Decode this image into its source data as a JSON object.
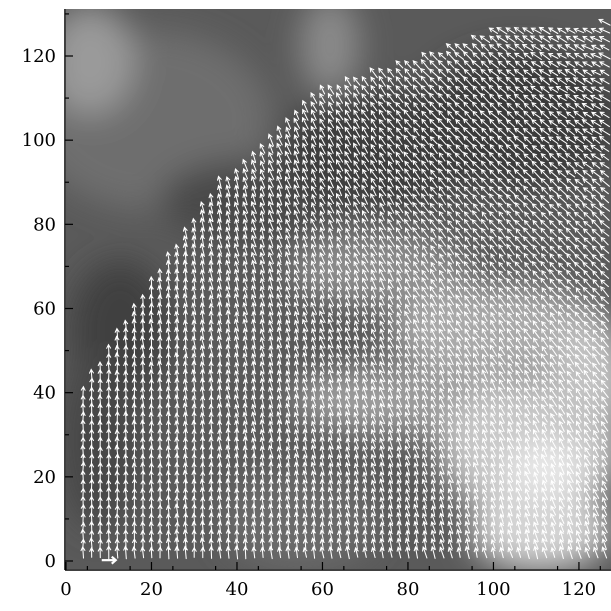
{
  "chart_data": {
    "type": "quiver",
    "title": "",
    "xlabel": "",
    "ylabel": "",
    "xlim": [
      -1,
      128
    ],
    "ylim": [
      -1,
      131
    ],
    "x_ticks": [
      0,
      20,
      40,
      60,
      80,
      100,
      120
    ],
    "y_ticks": [
      0,
      20,
      40,
      60,
      80,
      100,
      120
    ],
    "x_tick_labels": [
      "0",
      "20",
      "40",
      "60",
      "80",
      "100",
      "120"
    ],
    "y_tick_labels": [
      "0",
      "20",
      "40",
      "60",
      "80",
      "100",
      "120"
    ],
    "background": "grayscale intensity image, bright region lower-right, dark upper-left",
    "vector_field": {
      "grid_step": 2,
      "x_range": [
        4,
        126
      ],
      "y_range": [
        2,
        128
      ],
      "boundary": [
        [
          4,
          41
        ],
        [
          20,
          67
        ],
        [
          36,
          90
        ],
        [
          48,
          100
        ],
        [
          60,
          112
        ],
        [
          90,
          122
        ],
        [
          100,
          126
        ],
        [
          126,
          128
        ]
      ],
      "direction_description": "upward near left boundary, rotating to up-left toward upper-right",
      "color": "#ffffff"
    },
    "reference_vector": {
      "x": 10,
      "y": 0.2,
      "direction": "right"
    }
  }
}
